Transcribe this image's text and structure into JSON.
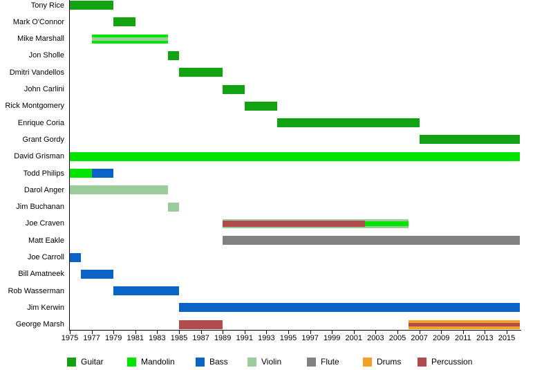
{
  "chart_data": {
    "type": "bar",
    "variant": "horizontal-timeline-gantt",
    "title": "",
    "xlabel": "",
    "ylabel": "",
    "grid": false,
    "legend_position": "bottom",
    "x_axis": {
      "start": 1975,
      "end": 2016.2,
      "tick_interval": 2,
      "ticks": [
        1975,
        1977,
        1979,
        1981,
        1983,
        1985,
        1987,
        1989,
        1991,
        1993,
        1995,
        1997,
        1999,
        2001,
        2003,
        2005,
        2007,
        2009,
        2011,
        2013,
        2015
      ]
    },
    "instruments": {
      "Guitar": "#12a212",
      "Mandolin": "#00e400",
      "Bass": "#0b63c5",
      "Violin": "#9ccc9c",
      "Flute": "#818181",
      "Drums": "#f5a128",
      "Percussion": "#b04c4c"
    },
    "legend": [
      "Guitar",
      "Mandolin",
      "Bass",
      "Violin",
      "Flute",
      "Drums",
      "Percussion"
    ],
    "rows": [
      {
        "name": "Tony Rice",
        "segments": [
          {
            "instrument": "Guitar",
            "from": 1975,
            "to": 1979
          }
        ]
      },
      {
        "name": "Mark O'Connor",
        "segments": [
          {
            "instrument": "Guitar",
            "from": 1979,
            "to": 1981
          }
        ]
      },
      {
        "name": "Mike Marshall",
        "segments": [
          {
            "instrument": "Mandolin",
            "from": 1977,
            "to": 1984
          },
          {
            "instrument": "Violin",
            "from": 1977,
            "to": 1984,
            "stripe": true,
            "thickness": 5
          }
        ]
      },
      {
        "name": "Jon Sholle",
        "segments": [
          {
            "instrument": "Guitar",
            "from": 1984,
            "to": 1985
          }
        ]
      },
      {
        "name": "Dmitri Vandellos",
        "segments": [
          {
            "instrument": "Guitar",
            "from": 1985,
            "to": 1989
          }
        ]
      },
      {
        "name": "John Carlini",
        "segments": [
          {
            "instrument": "Guitar",
            "from": 1989,
            "to": 1991
          }
        ]
      },
      {
        "name": "Rick Montgomery",
        "segments": [
          {
            "instrument": "Guitar",
            "from": 1991,
            "to": 1994
          }
        ]
      },
      {
        "name": "Enrique Coria",
        "segments": [
          {
            "instrument": "Guitar",
            "from": 1994,
            "to": 2007
          }
        ]
      },
      {
        "name": "Grant Gordy",
        "segments": [
          {
            "instrument": "Guitar",
            "from": 2007,
            "to": 2016.2
          }
        ]
      },
      {
        "name": "David Grisman",
        "segments": [
          {
            "instrument": "Mandolin",
            "from": 1975,
            "to": 2016.2
          }
        ]
      },
      {
        "name": "Todd Philips",
        "segments": [
          {
            "instrument": "Mandolin",
            "from": 1975,
            "to": 1977
          },
          {
            "instrument": "Bass",
            "from": 1977,
            "to": 1979
          }
        ]
      },
      {
        "name": "Darol Anger",
        "segments": [
          {
            "instrument": "Violin",
            "from": 1975,
            "to": 1984
          }
        ]
      },
      {
        "name": "Jim Buchanan",
        "segments": [
          {
            "instrument": "Violin",
            "from": 1984,
            "to": 1985
          }
        ]
      },
      {
        "name": "Joe Craven",
        "segments": [
          {
            "instrument": "Violin",
            "from": 1989,
            "to": 2006
          },
          {
            "instrument": "Percussion",
            "from": 1989,
            "to": 2002,
            "stripe": true,
            "thickness": 9
          },
          {
            "instrument": "Mandolin",
            "from": 2002,
            "to": 2006,
            "stripe": true,
            "thickness": 7
          }
        ]
      },
      {
        "name": "Matt Eakle",
        "segments": [
          {
            "instrument": "Flute",
            "from": 1989,
            "to": 2016.2
          }
        ]
      },
      {
        "name": "Joe Carroll",
        "segments": [
          {
            "instrument": "Bass",
            "from": 1975,
            "to": 1976
          }
        ]
      },
      {
        "name": "Bill Amatneek",
        "segments": [
          {
            "instrument": "Bass",
            "from": 1976,
            "to": 1979
          }
        ]
      },
      {
        "name": "Rob Wasserman",
        "segments": [
          {
            "instrument": "Bass",
            "from": 1979,
            "to": 1985
          }
        ]
      },
      {
        "name": "Jim Kerwin",
        "segments": [
          {
            "instrument": "Bass",
            "from": 1985,
            "to": 2016.2
          }
        ]
      },
      {
        "name": "George Marsh",
        "segments": [
          {
            "instrument": "Percussion",
            "from": 1985,
            "to": 1989
          },
          {
            "instrument": "Drums",
            "from": 2006,
            "to": 2016.2
          },
          {
            "instrument": "Percussion",
            "from": 2006,
            "to": 2016.2,
            "stripe": true,
            "thickness": 5
          }
        ]
      }
    ]
  }
}
